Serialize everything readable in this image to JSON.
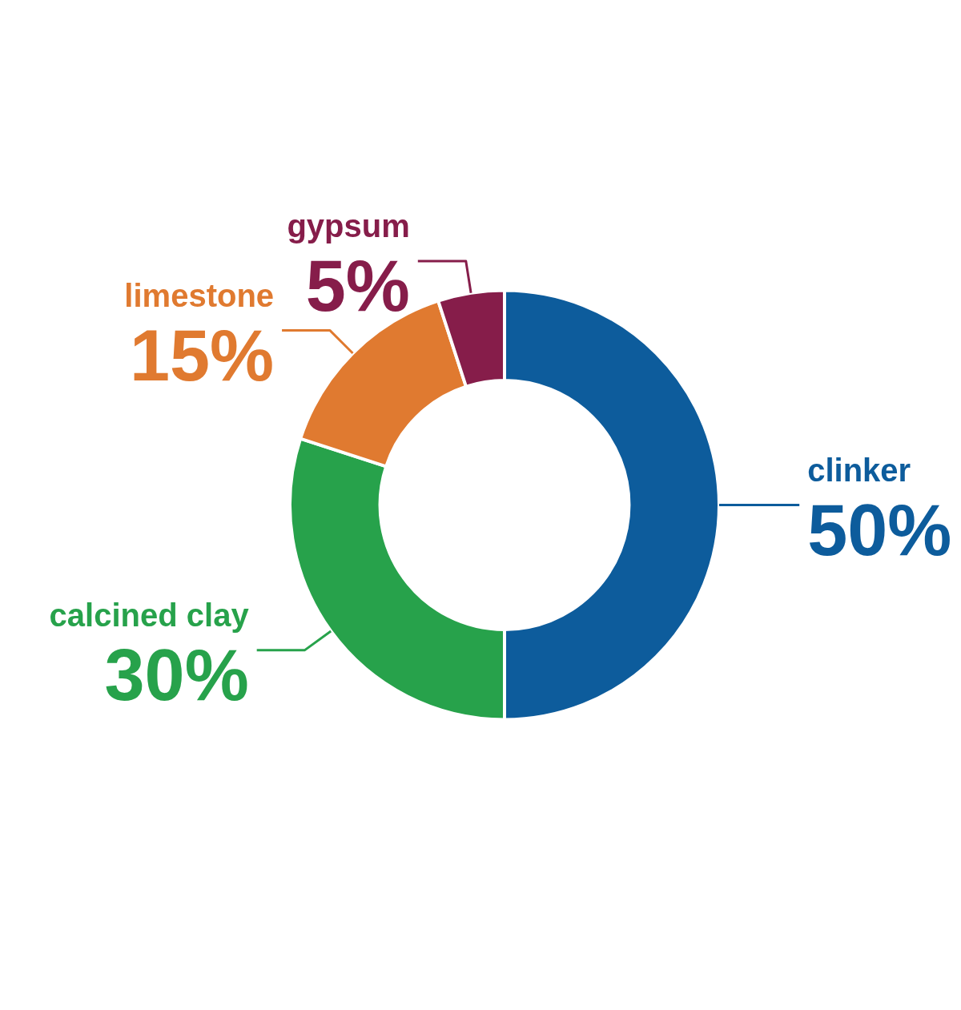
{
  "chart_data": {
    "type": "donut",
    "categories": [
      "clinker",
      "calcined clay",
      "limestone",
      "gypsum"
    ],
    "values": [
      50,
      30,
      15,
      5
    ],
    "value_labels": [
      "50%",
      "30%",
      "15%",
      "5%"
    ],
    "colors": [
      "#0d5c9c",
      "#27a24b",
      "#e07a30",
      "#861d4a"
    ],
    "legend": false
  }
}
